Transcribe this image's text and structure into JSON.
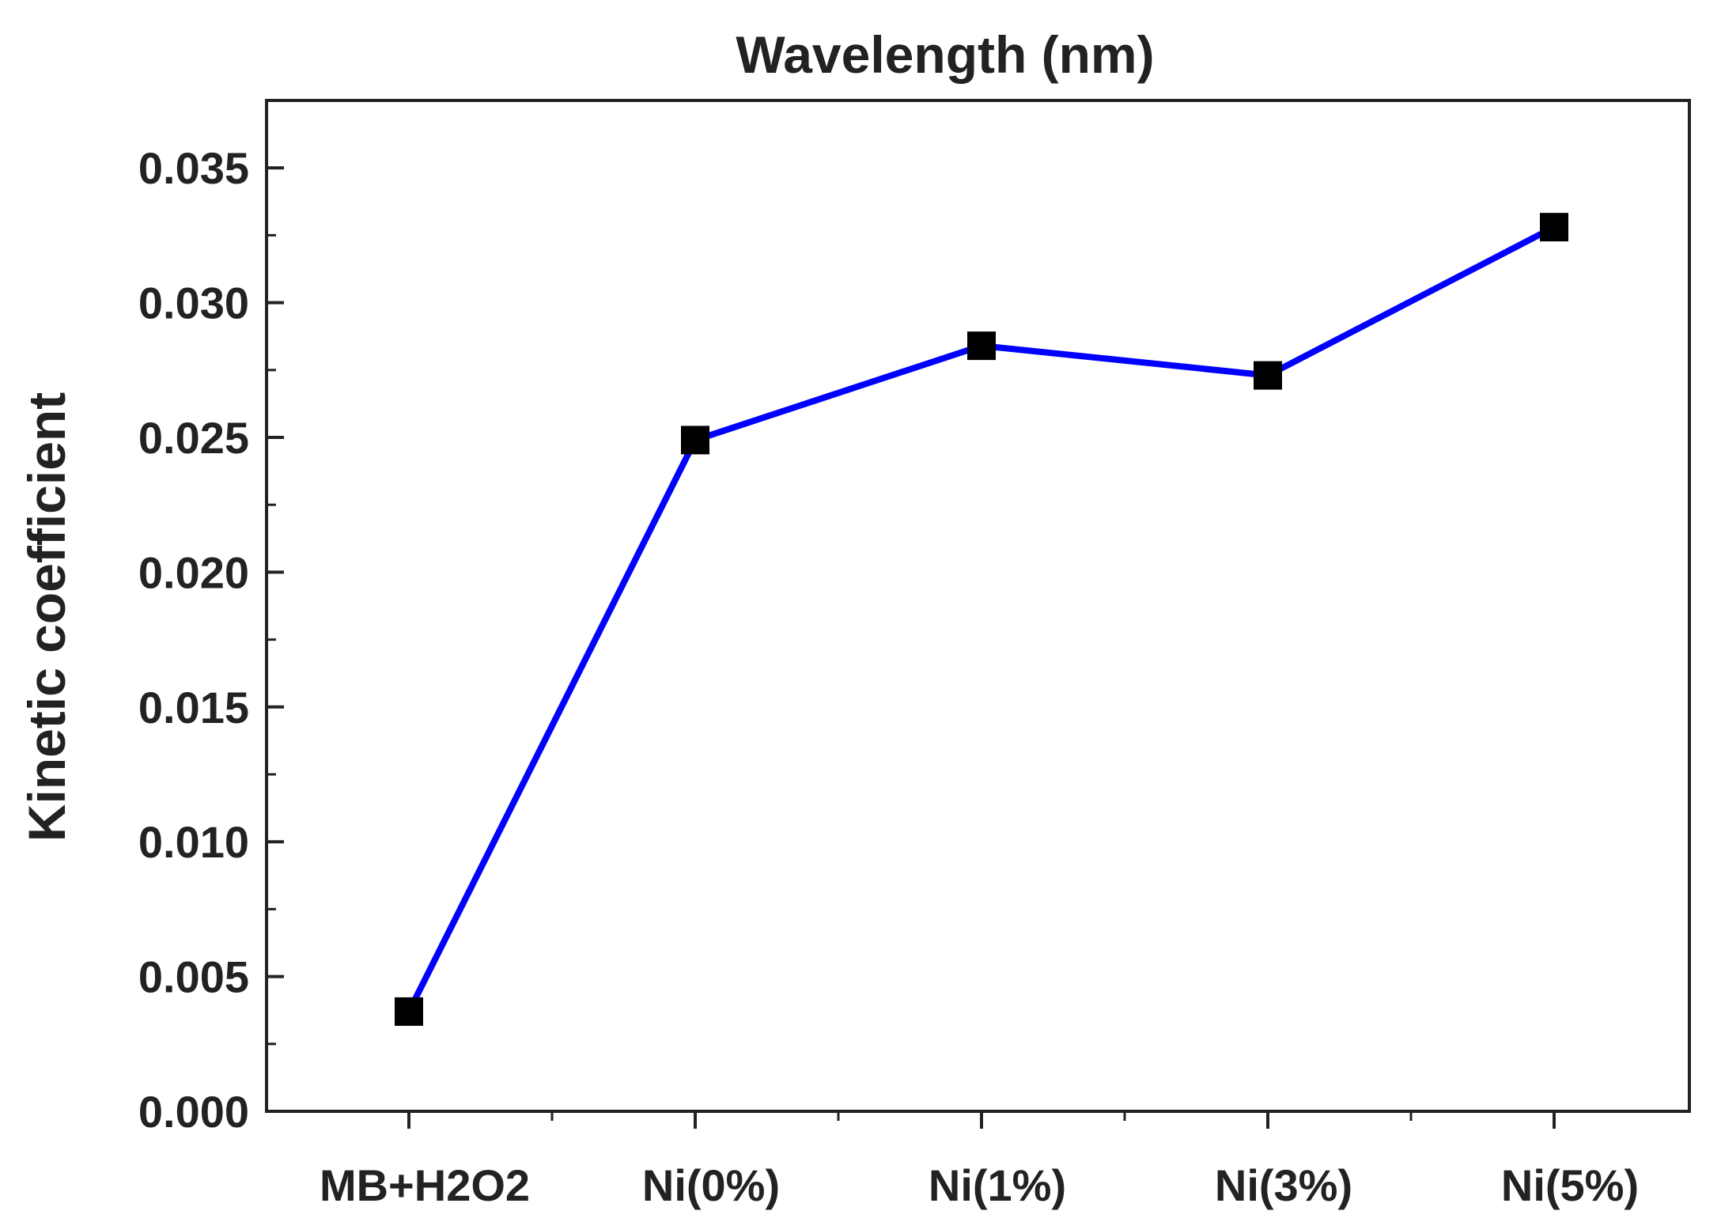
{
  "chart_data": {
    "type": "line",
    "title": "Wavelength (nm)",
    "xlabel": "",
    "ylabel": "Kinetic coefficient",
    "categories": [
      "MB+H2O2",
      "Ni(0%)",
      "Ni(1%)",
      "Ni(3%)",
      "Ni(5%)"
    ],
    "series": [
      {
        "name": "Kinetic coefficient",
        "values": [
          0.0037,
          0.0249,
          0.0284,
          0.0273,
          0.0328
        ],
        "color": "#0000ff",
        "marker": "square",
        "marker_color": "#000000"
      }
    ],
    "ylim": [
      0,
      0.0375
    ],
    "yticks": [
      "0.000",
      "0.005",
      "0.010",
      "0.015",
      "0.020",
      "0.025",
      "0.030",
      "0.035"
    ],
    "ytick_values": [
      0,
      0.005,
      0.01,
      0.015,
      0.02,
      0.025,
      0.03,
      0.035
    ],
    "grid": false,
    "axis_color": "#222222"
  }
}
